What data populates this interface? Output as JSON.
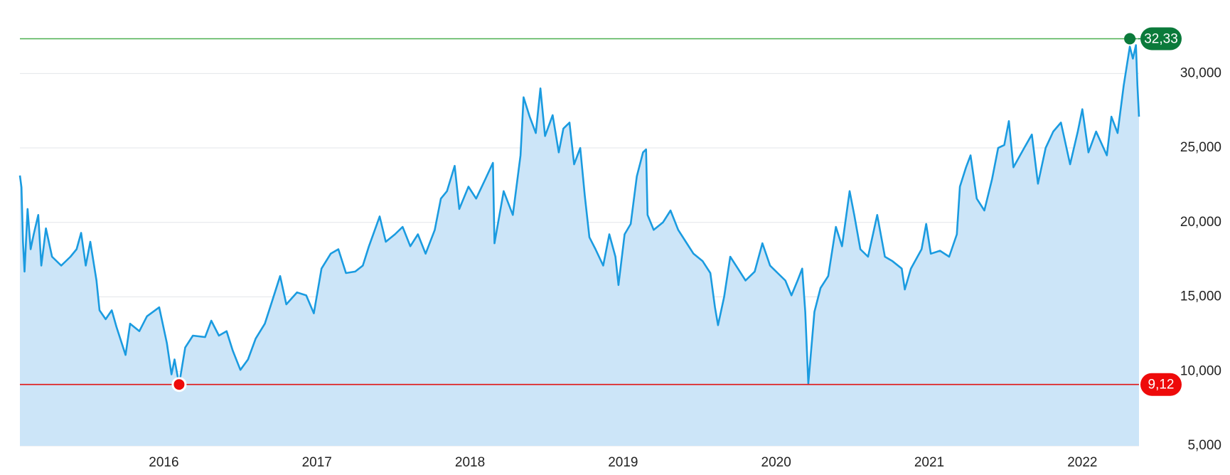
{
  "chart_data": {
    "type": "area",
    "x": [
      2015.06,
      2015.07,
      2015.08,
      2015.09,
      2015.11,
      2015.13,
      2015.15,
      2015.18,
      2015.2,
      2015.23,
      2015.27,
      2015.33,
      2015.39,
      2015.43,
      2015.46,
      2015.49,
      2015.52,
      2015.56,
      2015.58,
      2015.62,
      2015.66,
      2015.69,
      2015.75,
      2015.78,
      2015.84,
      2015.89,
      2015.97,
      2016.02,
      2016.05,
      2016.07,
      2016.1,
      2016.14,
      2016.19,
      2016.27,
      2016.31,
      2016.36,
      2016.41,
      2016.45,
      2016.5,
      2016.55,
      2016.6,
      2016.66,
      2016.71,
      2016.76,
      2016.8,
      2016.87,
      2016.93,
      2016.98,
      2017.03,
      2017.09,
      2017.14,
      2017.19,
      2017.25,
      2017.3,
      2017.34,
      2017.41,
      2017.45,
      2017.51,
      2017.56,
      2017.61,
      2017.66,
      2017.71,
      2017.77,
      2017.81,
      2017.85,
      2017.9,
      2017.93,
      2017.99,
      2018.04,
      2018.1,
      2018.15,
      2018.16,
      2018.22,
      2018.28,
      2018.33,
      2018.35,
      2018.39,
      2018.43,
      2018.46,
      2018.49,
      2018.54,
      2018.58,
      2018.61,
      2018.65,
      2018.68,
      2018.72,
      2018.75,
      2018.78,
      2018.82,
      2018.87,
      2018.91,
      2018.95,
      2018.97,
      2019.01,
      2019.05,
      2019.09,
      2019.13,
      2019.15,
      2019.16,
      2019.2,
      2019.26,
      2019.31,
      2019.36,
      2019.41,
      2019.46,
      2019.52,
      2019.57,
      2019.6,
      2019.62,
      2019.66,
      2019.7,
      2019.75,
      2019.8,
      2019.86,
      2019.91,
      2019.96,
      2020.01,
      2020.06,
      2020.1,
      2020.14,
      2020.17,
      2020.19,
      2020.21,
      2020.25,
      2020.29,
      2020.34,
      2020.39,
      2020.43,
      2020.48,
      2020.51,
      2020.55,
      2020.6,
      2020.66,
      2020.71,
      2020.76,
      2020.82,
      2020.84,
      2020.88,
      2020.95,
      2020.98,
      2021.01,
      2021.07,
      2021.13,
      2021.18,
      2021.2,
      2021.24,
      2021.27,
      2021.31,
      2021.36,
      2021.41,
      2021.45,
      2021.49,
      2021.52,
      2021.55,
      2021.62,
      2021.67,
      2021.71,
      2021.76,
      2021.81,
      2021.86,
      2021.92,
      2021.97,
      2022.0,
      2022.04,
      2022.09,
      2022.16,
      2022.19,
      2022.23,
      2022.27,
      2022.31,
      2022.33,
      2022.35,
      2022.36,
      2022.37
    ],
    "values": [
      23150,
      22360,
      18700,
      16700,
      20900,
      18200,
      19200,
      20500,
      17100,
      19600,
      17700,
      17100,
      17700,
      18200,
      19300,
      17100,
      18700,
      16100,
      14100,
      13500,
      14100,
      13000,
      11100,
      13200,
      12700,
      13700,
      14300,
      11900,
      9800,
      10800,
      9120,
      11600,
      12400,
      12300,
      13400,
      12400,
      12700,
      11400,
      10100,
      10800,
      12200,
      13200,
      14800,
      16400,
      14500,
      15300,
      15100,
      13900,
      16900,
      17900,
      18200,
      16600,
      16700,
      17100,
      18400,
      20400,
      18700,
      19200,
      19700,
      18400,
      19200,
      17900,
      19500,
      21600,
      22100,
      23800,
      20900,
      22400,
      21600,
      22900,
      24000,
      18600,
      22100,
      20500,
      24500,
      28400,
      27100,
      26000,
      29000,
      25800,
      27200,
      24700,
      26300,
      26700,
      23900,
      25000,
      21800,
      19000,
      18200,
      17100,
      19200,
      17700,
      15800,
      19200,
      19900,
      23100,
      24700,
      24900,
      20500,
      19500,
      20000,
      20800,
      19500,
      18700,
      17900,
      17400,
      16600,
      14300,
      13100,
      15000,
      17700,
      16900,
      16100,
      16700,
      18600,
      17100,
      16600,
      16100,
      15100,
      16100,
      16900,
      14000,
      9180,
      14000,
      15600,
      16400,
      19700,
      18400,
      22100,
      20500,
      18200,
      17700,
      20500,
      17700,
      17400,
      16900,
      15500,
      16900,
      18200,
      19900,
      17900,
      18100,
      17700,
      19200,
      22400,
      23700,
      24500,
      21600,
      20800,
      22900,
      25000,
      25200,
      26800,
      23700,
      25000,
      25900,
      22600,
      25000,
      26100,
      26700,
      23900,
      26100,
      27600,
      24700,
      26100,
      24500,
      27100,
      26000,
      29200,
      31800,
      31000,
      31900,
      29200,
      27100
    ],
    "color": "#1a9be0",
    "fill": "#cce5f8",
    "xlim": [
      2015.06,
      2022.37
    ],
    "xticks": [
      2016,
      2017,
      2018,
      2019,
      2020,
      2021,
      2022
    ],
    "ylim": [
      5000,
      33500
    ],
    "yticks": [
      {
        "value": 5000,
        "label": "5,000"
      },
      {
        "value": 10000,
        "label": "10,000"
      },
      {
        "value": 15000,
        "label": "15,000"
      },
      {
        "value": 20000,
        "label": "20,000"
      },
      {
        "value": 25000,
        "label": "25,000"
      },
      {
        "value": 30000,
        "label": "30,000"
      }
    ],
    "grid": true,
    "max": {
      "x": 2022.31,
      "value": 32330,
      "label": "32,33",
      "color": "#0b7a3b",
      "line_color": "#4caf50"
    },
    "min": {
      "x": 2016.1,
      "value": 9120,
      "label": "9,12",
      "color": "#ee0a0a",
      "line_color": "#e01515"
    }
  }
}
